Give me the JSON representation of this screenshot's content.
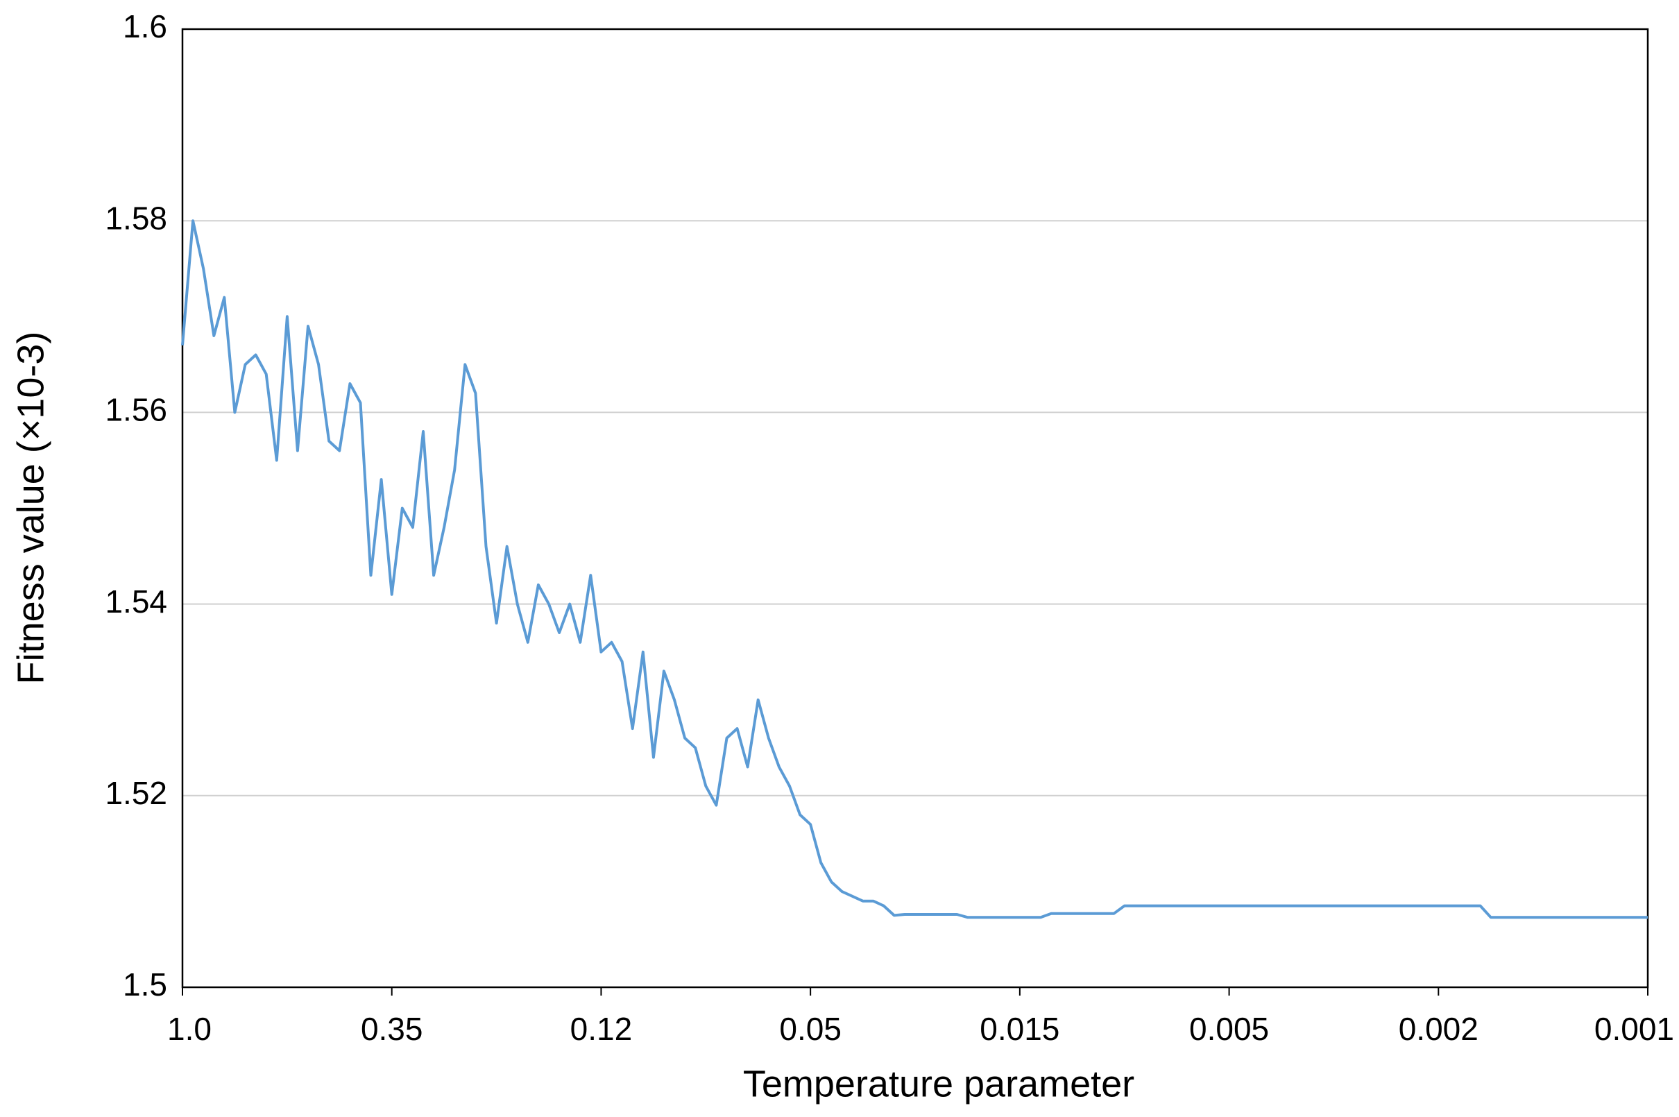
{
  "chart_data": {
    "type": "line",
    "xlabel": "Temperature parameter",
    "ylabel": "Fitness value (×10-3)",
    "categories": [
      "1.0",
      null,
      null,
      null,
      null,
      null,
      null,
      null,
      null,
      null,
      null,
      null,
      null,
      null,
      null,
      null,
      null,
      null,
      null,
      null,
      "0.35",
      null,
      null,
      null,
      null,
      null,
      null,
      null,
      null,
      null,
      null,
      null,
      null,
      null,
      null,
      null,
      null,
      null,
      null,
      null,
      "0.12",
      null,
      null,
      null,
      null,
      null,
      null,
      null,
      null,
      null,
      null,
      null,
      null,
      null,
      null,
      null,
      null,
      null,
      null,
      null,
      "0.05",
      null,
      null,
      null,
      null,
      null,
      null,
      null,
      null,
      null,
      null,
      null,
      null,
      null,
      null,
      null,
      null,
      null,
      null,
      null,
      "0.015",
      null,
      null,
      null,
      null,
      null,
      null,
      null,
      null,
      null,
      null,
      null,
      null,
      null,
      null,
      null,
      null,
      null,
      null,
      null,
      "0.005",
      null,
      null,
      null,
      null,
      null,
      null,
      null,
      null,
      null,
      null,
      null,
      null,
      null,
      null,
      null,
      null,
      null,
      null,
      null,
      "0.002",
      null,
      null,
      null,
      null,
      null,
      null,
      null,
      null,
      null,
      null,
      null,
      null,
      null,
      null,
      null,
      null,
      null,
      null,
      null,
      "0.001"
    ],
    "values": [
      1.567,
      1.58,
      1.575,
      1.568,
      1.572,
      1.56,
      1.565,
      1.566,
      1.564,
      1.555,
      1.57,
      1.556,
      1.569,
      1.565,
      1.557,
      1.556,
      1.563,
      1.561,
      1.543,
      1.553,
      1.541,
      1.55,
      1.548,
      1.558,
      1.543,
      1.548,
      1.554,
      1.565,
      1.562,
      1.546,
      1.538,
      1.546,
      1.54,
      1.536,
      1.542,
      1.54,
      1.537,
      1.54,
      1.536,
      1.543,
      1.535,
      1.536,
      1.534,
      1.527,
      1.535,
      1.524,
      1.533,
      1.53,
      1.526,
      1.525,
      1.521,
      1.519,
      1.526,
      1.527,
      1.523,
      1.53,
      1.526,
      1.523,
      1.521,
      1.518,
      1.517,
      1.513,
      1.511,
      1.51,
      1.5095,
      1.509,
      1.509,
      1.5085,
      1.5075,
      1.5076,
      1.5076,
      1.5076,
      1.5076,
      1.5076,
      1.5076,
      1.5073,
      1.5073,
      1.5073,
      1.5073,
      1.5073,
      1.5073,
      1.5073,
      1.5073,
      1.5077,
      1.5077,
      1.5077,
      1.5077,
      1.5077,
      1.5077,
      1.5077,
      1.5085,
      1.5085,
      1.5085,
      1.5085,
      1.5085,
      1.5085,
      1.5085,
      1.5085,
      1.5085,
      1.5085,
      1.5085,
      1.5085,
      1.5085,
      1.5085,
      1.5085,
      1.5085,
      1.5085,
      1.5085,
      1.5085,
      1.5085,
      1.5085,
      1.5085,
      1.5085,
      1.5085,
      1.5085,
      1.5085,
      1.5085,
      1.5085,
      1.5085,
      1.5085,
      1.5085,
      1.5085,
      1.5085,
      1.5085,
      1.5085,
      1.5073,
      1.5073,
      1.5073,
      1.5073,
      1.5073,
      1.5073,
      1.5073,
      1.5073,
      1.5073,
      1.5073,
      1.5073,
      1.5073,
      1.5073,
      1.5073,
      1.5073,
      1.5073
    ],
    "color": "#5b9bd5",
    "ylim": [
      1.5,
      1.6
    ],
    "yticks": [
      1.5,
      1.52,
      1.54,
      1.56,
      1.58,
      1.6
    ],
    "grid": true
  }
}
